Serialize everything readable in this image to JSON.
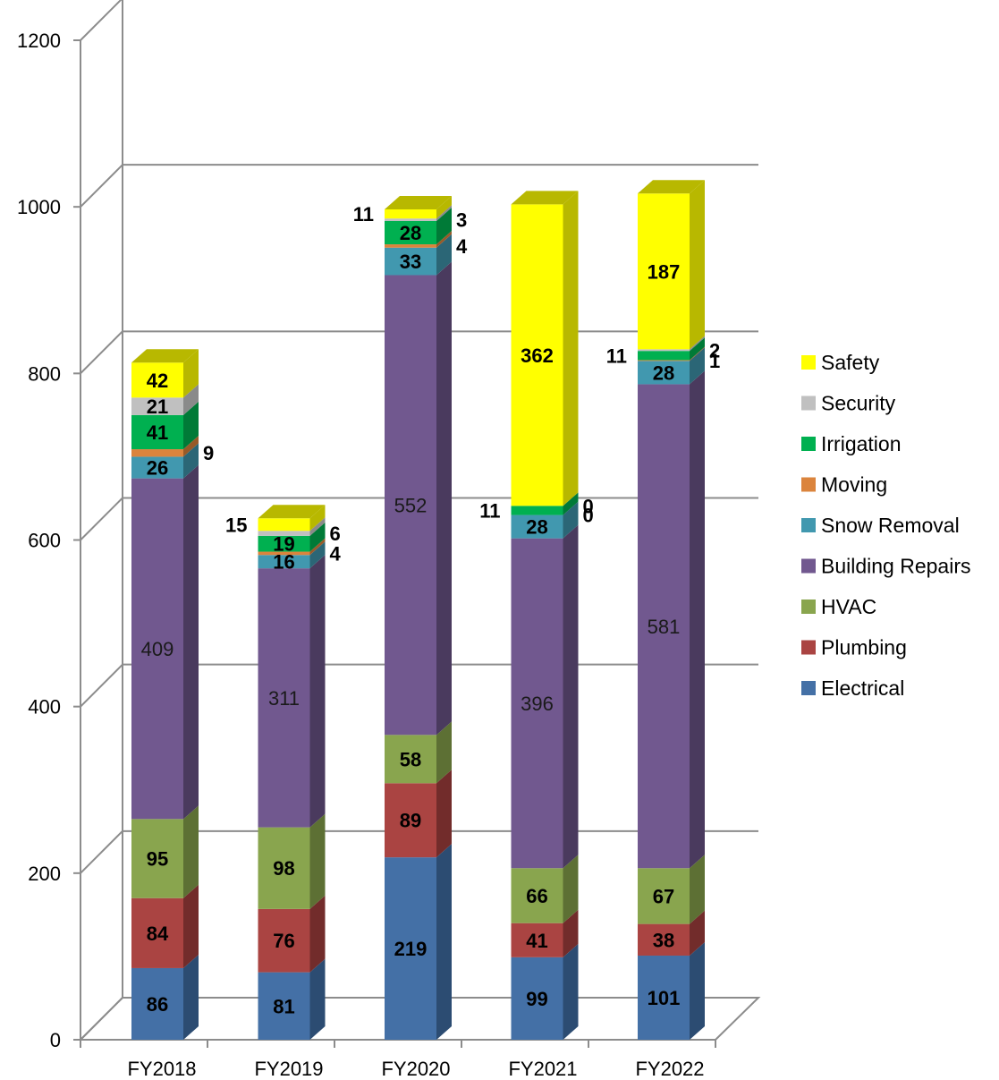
{
  "chart_data": {
    "type": "bar",
    "stacked": true,
    "three_d": true,
    "title": "",
    "xlabel": "",
    "ylabel": "",
    "ylim": [
      0,
      1200
    ],
    "yticks": [
      "0",
      "200",
      "400",
      "600",
      "800",
      "1000",
      "1200"
    ],
    "grid": true,
    "legend_position": "right",
    "categories": [
      "FY2018",
      "FY2019",
      "FY2020",
      "FY2021",
      "FY2022"
    ],
    "series": [
      {
        "name": "Electrical",
        "color": "#4470a6",
        "side": "#2c4c72",
        "values": [
          86,
          81,
          219,
          99,
          101
        ]
      },
      {
        "name": "Plumbing",
        "color": "#aa4442",
        "side": "#722c2b",
        "values": [
          84,
          76,
          89,
          41,
          38
        ]
      },
      {
        "name": "HVAC",
        "color": "#89a54e",
        "side": "#5d7034",
        "values": [
          95,
          98,
          58,
          66,
          67
        ]
      },
      {
        "name": "Building Repairs",
        "color": "#71588f",
        "side": "#4a3a5e",
        "values": [
          409,
          311,
          552,
          396,
          581
        ]
      },
      {
        "name": "Snow Removal",
        "color": "#4198af",
        "side": "#2b6676",
        "values": [
          26,
          16,
          33,
          28,
          28
        ]
      },
      {
        "name": "Moving",
        "color": "#db843d",
        "side": "#975a28",
        "values": [
          9,
          4,
          4,
          0,
          1
        ]
      },
      {
        "name": "Irrigation",
        "color": "#00b050",
        "side": "#007a37",
        "values": [
          41,
          19,
          28,
          11,
          11
        ]
      },
      {
        "name": "Security",
        "color": "#c0c0c0",
        "side": "#8a8a8a",
        "values": [
          21,
          6,
          3,
          0,
          2
        ]
      },
      {
        "name": "Safety",
        "color": "#ffff00",
        "side": "#b8b800",
        "values": [
          42,
          15,
          11,
          362,
          187
        ]
      }
    ],
    "legend_order": [
      "Safety",
      "Security",
      "Irrigation",
      "Moving",
      "Snow Removal",
      "Building Repairs",
      "HVAC",
      "Plumbing",
      "Electrical"
    ]
  }
}
